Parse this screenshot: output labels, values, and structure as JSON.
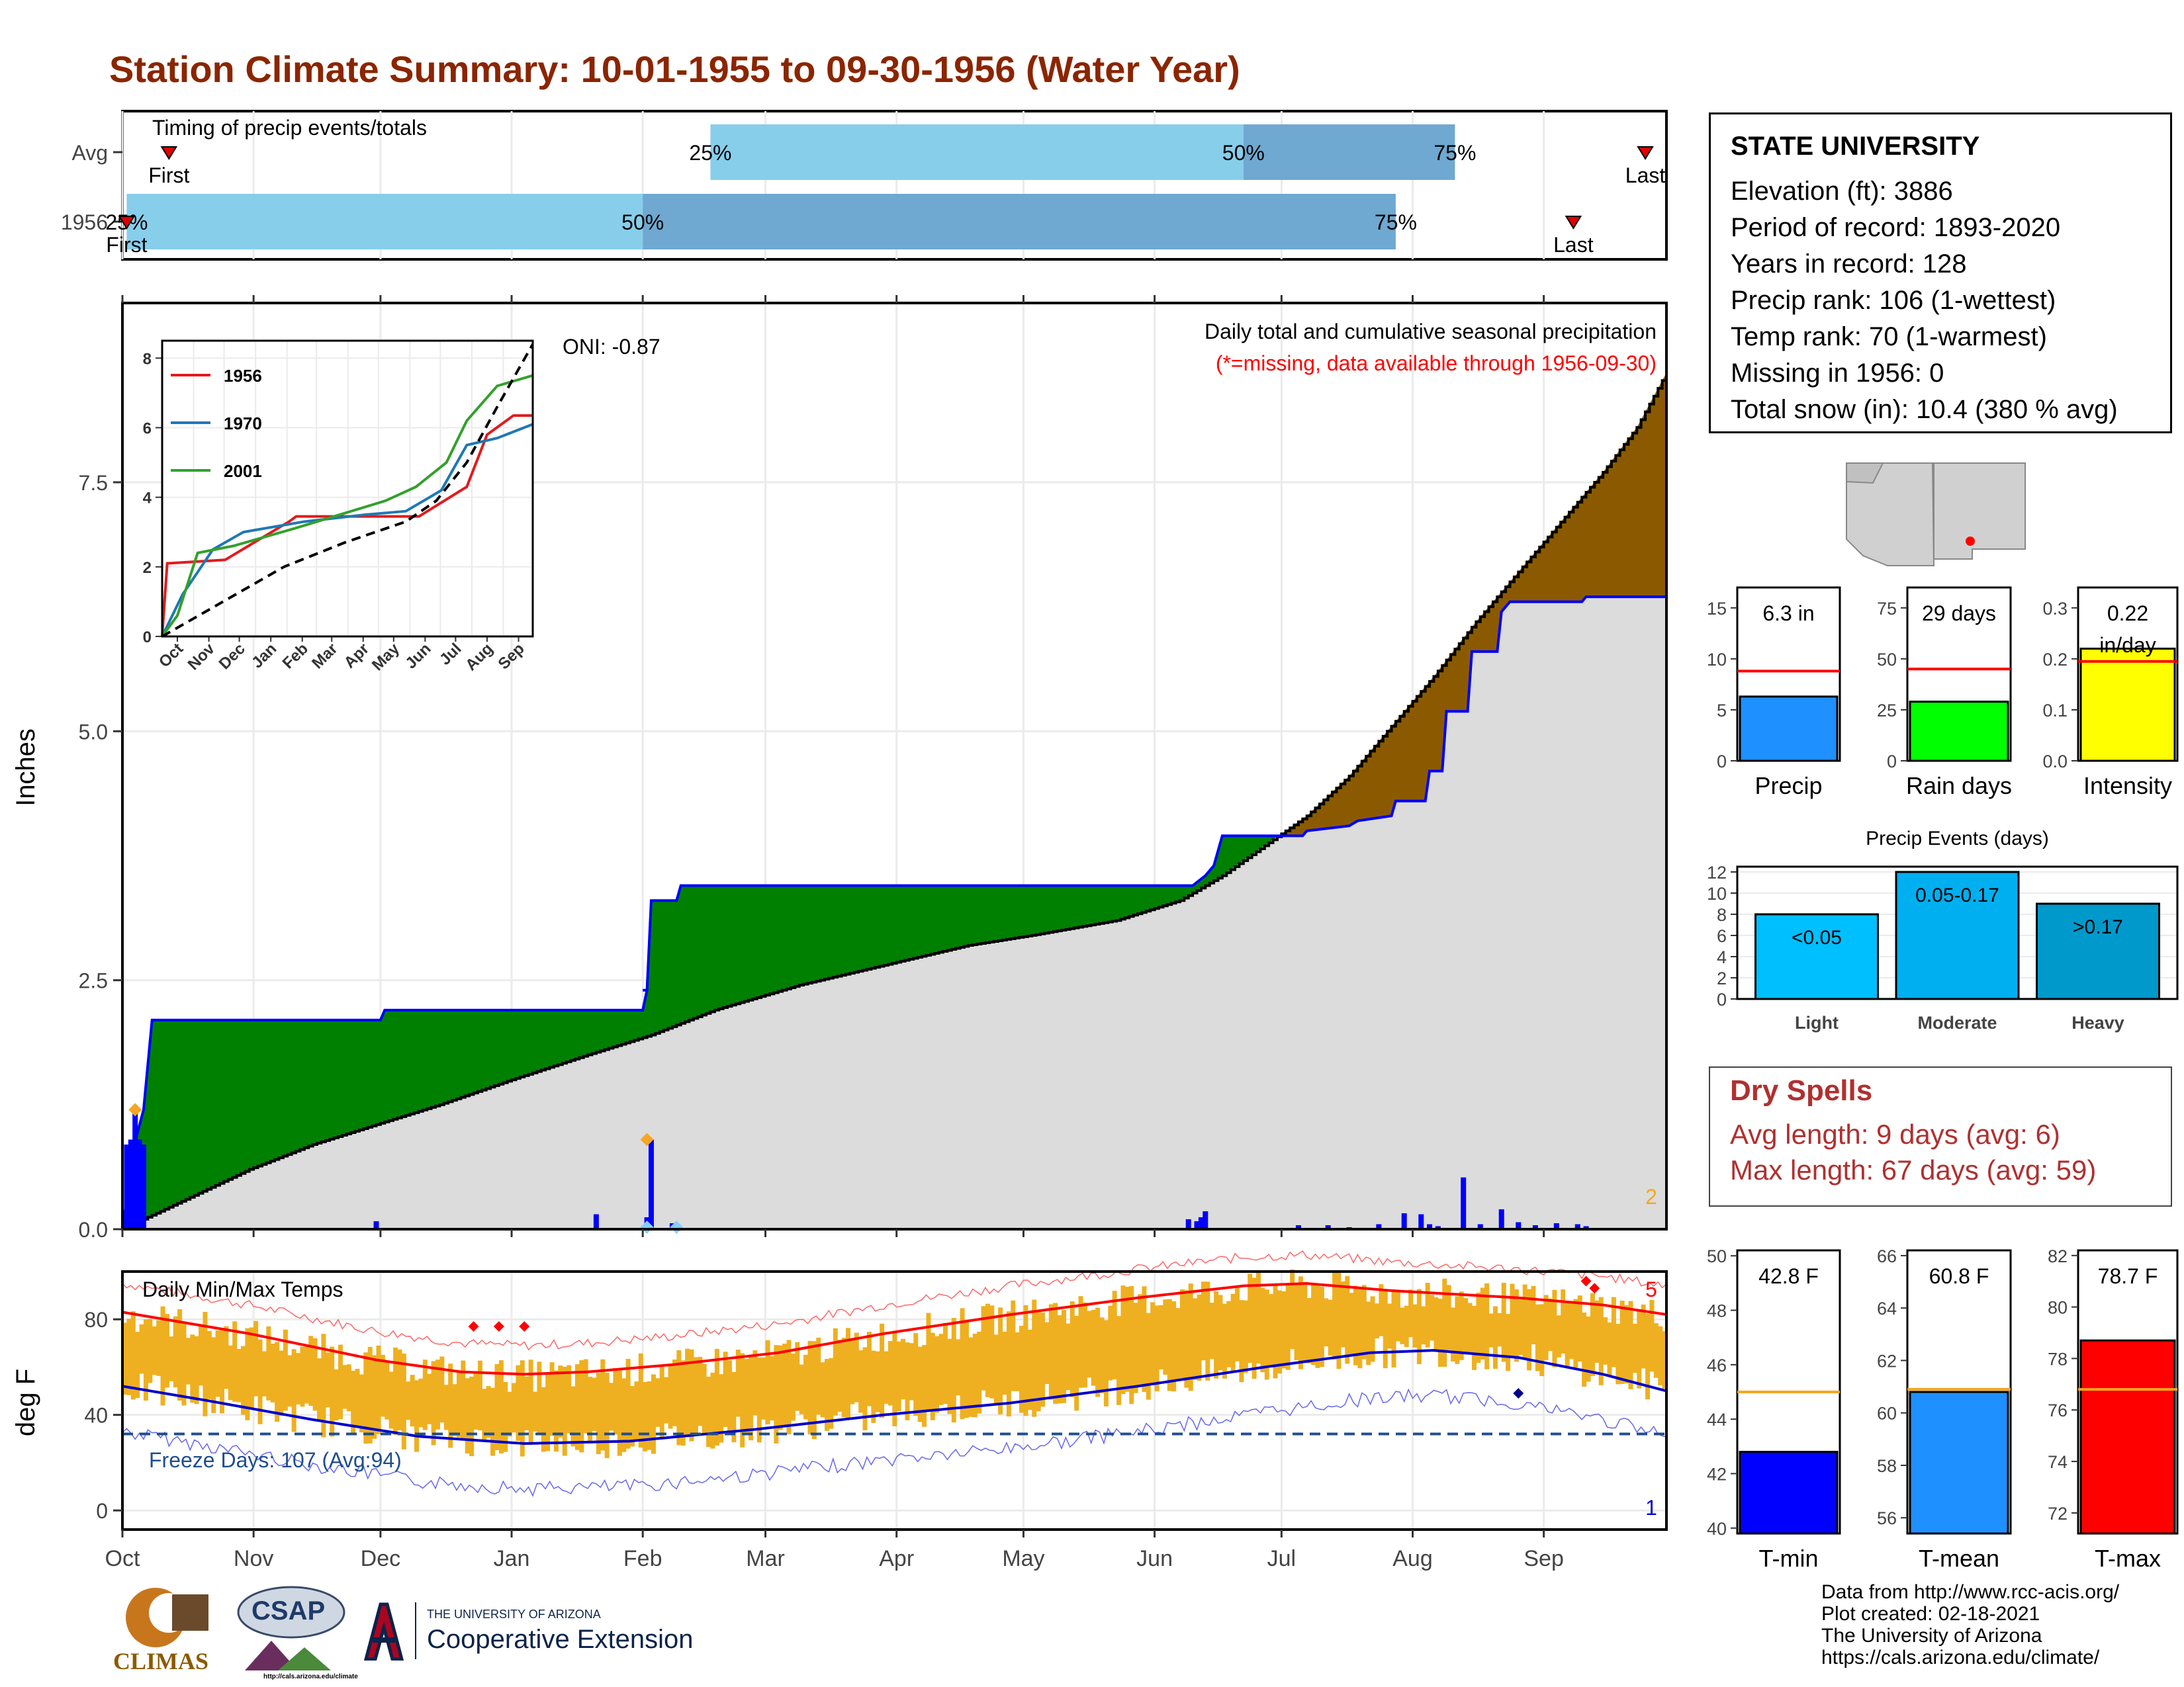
{
  "title": "Station Climate Summary: 10-01-1955 to 09-30-1956 (Water Year)",
  "station": {
    "name": "STATE UNIVERSITY",
    "lines": [
      "Elevation (ft): 3886",
      "Period of record: 1893-2020",
      "Years in record: 128",
      "Precip rank: 106 (1-wettest)",
      "Temp rank: 70 (1-warmest)",
      "Missing in 1956: 0",
      "Total snow (in): 10.4 (380 % avg)"
    ]
  },
  "dry_spells": {
    "title": "Dry Spells",
    "avg": "Avg length: 9 days (avg: 6)",
    "max": "Max length: 67 days (avg: 59)"
  },
  "credits": [
    "Data from http://www.rcc-acis.org/",
    "Plot created: 02-18-2021",
    "The University of Arizona",
    "https://cals.arizona.edu/climate/"
  ],
  "logos": {
    "climas": "CLIMAS",
    "csap": "CSAP",
    "csap_url": "http://cals.arizona.edu/climate",
    "ua_small": "THE UNIVERSITY OF ARIZONA",
    "ua_big": "Cooperative Extension"
  },
  "colors": {
    "title": "#8b2500",
    "green_fill": "#008000",
    "brown_fill": "#8b5a00",
    "gray_fill": "#dcdcdc",
    "precip_bar": "#0000ff",
    "light_blue": "#87ceeb",
    "mid_blue": "#6fa8d0",
    "temp_bar": "#eeb020",
    "tmax_line": "#ff0000",
    "tmin_line": "#0000cd",
    "freeze_line": "#1f4e8c"
  },
  "chart_data": [
    {
      "id": "timing",
      "type": "bar",
      "title": "Timing of precip events/totals",
      "categories": [
        "Avg",
        "1956"
      ],
      "x_axis": "date (Oct 1955 - Sep 1956)",
      "series": [
        {
          "name": "Avg",
          "first": "1955-10-12",
          "p25": "1956-02-17",
          "p50": "1956-06-22",
          "p75": "1956-08-11",
          "last": "1956-09-25",
          "labels": {
            "first": "First",
            "p25": "25%",
            "p50": "50%",
            "p75": "75%",
            "last": "Last"
          }
        },
        {
          "name": "1956",
          "first": "1955-10-02",
          "p25": "1955-10-02",
          "p50": "1956-02-01",
          "p75": "1956-07-28",
          "last": "1956-09-08",
          "labels": {
            "first": "First",
            "p25": "25%",
            "p50": "50%",
            "p75": "75%",
            "last": "Last"
          }
        }
      ]
    },
    {
      "id": "precip",
      "type": "area",
      "title": "Daily total and cumulative seasonal precipitation",
      "subtitle": "(*=missing, data available through 1956-09-30)",
      "oni_label": "ONI: -0.87",
      "ylabel": "Inches",
      "ylim": [
        0,
        9.3
      ],
      "yticks": [
        "0.0",
        "2.5",
        "5.0",
        "7.5"
      ],
      "xticks": [
        "Oct",
        "Nov",
        "Dec",
        "Jan",
        "Feb",
        "Mar",
        "Apr",
        "May",
        "Jun",
        "Jul",
        "Aug",
        "Sep"
      ],
      "count_label": "2",
      "cumulative_1956": [
        [
          0,
          0
        ],
        [
          3,
          0.88
        ],
        [
          5,
          1.2
        ],
        [
          7,
          2.1
        ],
        [
          61,
          2.1
        ],
        [
          62,
          2.2
        ],
        [
          123,
          2.2
        ],
        [
          124,
          2.4
        ],
        [
          124,
          2.4
        ],
        [
          123,
          2.4
        ],
        [
          124,
          2.4
        ],
        [
          125,
          3.3
        ],
        [
          131,
          3.3
        ],
        [
          132,
          3.45
        ],
        [
          253,
          3.45
        ],
        [
          256,
          3.55
        ],
        [
          258,
          3.65
        ],
        [
          260,
          3.95
        ],
        [
          279,
          3.95
        ],
        [
          280,
          4.0
        ],
        [
          290,
          4.05
        ],
        [
          292,
          4.1
        ],
        [
          300,
          4.15
        ],
        [
          301,
          4.3
        ],
        [
          308,
          4.3
        ],
        [
          309,
          4.6
        ],
        [
          312,
          4.6
        ],
        [
          313,
          5.2
        ],
        [
          318,
          5.2
        ],
        [
          319,
          5.8
        ],
        [
          325,
          5.8
        ],
        [
          326,
          6.2
        ],
        [
          328,
          6.3
        ],
        [
          345,
          6.3
        ],
        [
          346,
          6.35
        ],
        [
          365,
          6.35
        ]
      ],
      "cumulative_avg": [
        [
          0,
          0
        ],
        [
          15,
          0.3
        ],
        [
          30,
          0.6
        ],
        [
          45,
          0.85
        ],
        [
          60,
          1.05
        ],
        [
          75,
          1.25
        ],
        [
          92,
          1.5
        ],
        [
          110,
          1.75
        ],
        [
          125,
          1.95
        ],
        [
          140,
          2.2
        ],
        [
          160,
          2.45
        ],
        [
          180,
          2.65
        ],
        [
          200,
          2.85
        ],
        [
          215,
          2.95
        ],
        [
          235,
          3.1
        ],
        [
          250,
          3.3
        ],
        [
          260,
          3.55
        ],
        [
          270,
          3.85
        ],
        [
          280,
          4.15
        ],
        [
          290,
          4.55
        ],
        [
          300,
          5.05
        ],
        [
          310,
          5.55
        ],
        [
          320,
          6.1
        ],
        [
          330,
          6.6
        ],
        [
          340,
          7.1
        ],
        [
          350,
          7.6
        ],
        [
          358,
          8.05
        ],
        [
          365,
          8.6
        ]
      ],
      "daily_bars": [
        [
          1,
          0.85
        ],
        [
          2,
          0.9
        ],
        [
          3,
          1.2
        ],
        [
          4,
          0.9
        ],
        [
          5,
          0.85
        ],
        [
          60,
          0.08
        ],
        [
          112,
          0.15
        ],
        [
          124,
          0.12
        ],
        [
          125,
          0.9
        ],
        [
          130,
          0.06
        ],
        [
          252,
          0.1
        ],
        [
          254,
          0.08
        ],
        [
          255,
          0.12
        ],
        [
          256,
          0.18
        ],
        [
          278,
          0.04
        ],
        [
          285,
          0.04
        ],
        [
          290,
          0.02
        ],
        [
          297,
          0.05
        ],
        [
          303,
          0.16
        ],
        [
          307,
          0.15
        ],
        [
          309,
          0.05
        ],
        [
          311,
          0.03
        ],
        [
          317,
          0.52
        ],
        [
          321,
          0.05
        ],
        [
          326,
          0.2
        ],
        [
          330,
          0.07
        ],
        [
          334,
          0.04
        ],
        [
          339,
          0.06
        ],
        [
          344,
          0.05
        ],
        [
          346,
          0.03
        ]
      ],
      "daily_markers": [
        [
          3,
          1.2,
          "orange"
        ],
        [
          124,
          0.9,
          "orange"
        ],
        [
          124,
          0.02,
          "lightblue"
        ],
        [
          131,
          0.02,
          "lightblue"
        ]
      ],
      "inset": {
        "type": "line",
        "ylim": [
          0,
          8.5
        ],
        "yticks": [
          "0",
          "2",
          "4",
          "6",
          "8"
        ],
        "xticks": [
          "Oct",
          "Nov",
          "Dec",
          "Jan",
          "Feb",
          "Mar",
          "Apr",
          "May",
          "Jun",
          "Jul",
          "Aug",
          "Sep"
        ],
        "series": [
          {
            "name": "1956",
            "color": "#e31a1c",
            "values": [
              [
                0,
                0
              ],
              [
                5,
                2.1
              ],
              [
                62,
                2.2
              ],
              [
                125,
                3.3
              ],
              [
                132,
                3.45
              ],
              [
                253,
                3.45
              ],
              [
                300,
                4.3
              ],
              [
                320,
                5.8
              ],
              [
                346,
                6.35
              ],
              [
                365,
                6.35
              ]
            ]
          },
          {
            "name": "1970",
            "color": "#1f78b4",
            "values": [
              [
                0,
                0
              ],
              [
                20,
                1.2
              ],
              [
                50,
                2.5
              ],
              [
                80,
                3.0
              ],
              [
                140,
                3.3
              ],
              [
                200,
                3.5
              ],
              [
                240,
                3.6
              ],
              [
                275,
                4.2
              ],
              [
                300,
                5.5
              ],
              [
                330,
                5.7
              ],
              [
                365,
                6.1
              ]
            ]
          },
          {
            "name": "2001",
            "color": "#33a02c",
            "values": [
              [
                0,
                0
              ],
              [
                15,
                0.6
              ],
              [
                35,
                2.4
              ],
              [
                70,
                2.6
              ],
              [
                130,
                3.1
              ],
              [
                220,
                3.9
              ],
              [
                250,
                4.3
              ],
              [
                280,
                5.0
              ],
              [
                300,
                6.2
              ],
              [
                330,
                7.2
              ],
              [
                365,
                7.5
              ]
            ]
          },
          {
            "name": "Avg",
            "color": "#000000",
            "dashed": true,
            "values": [
              [
                0,
                0
              ],
              [
                60,
                1.0
              ],
              [
                120,
                2.0
              ],
              [
                180,
                2.7
              ],
              [
                240,
                3.3
              ],
              [
                270,
                3.9
              ],
              [
                300,
                5.0
              ],
              [
                330,
                6.6
              ],
              [
                365,
                8.4
              ]
            ]
          }
        ]
      }
    },
    {
      "id": "temps",
      "type": "bar",
      "title": "Daily Min/Max Temps",
      "ylabel": "deg F",
      "ylim": [
        -8,
        100
      ],
      "yticks": [
        "0",
        "40",
        "80"
      ],
      "xticks": [
        "Oct",
        "Nov",
        "Dec",
        "Jan",
        "Feb",
        "Mar",
        "Apr",
        "May",
        "Jun",
        "Jul",
        "Aug",
        "Sep"
      ],
      "freeze_label": "Freeze Days: 107 (Avg:94)",
      "freeze_line_f": 32,
      "count_hi": "5",
      "count_lo": "1",
      "avg_tmax_pts": [
        [
          0,
          83
        ],
        [
          30,
          74
        ],
        [
          60,
          63
        ],
        [
          80,
          58
        ],
        [
          95,
          57
        ],
        [
          110,
          58
        ],
        [
          130,
          61
        ],
        [
          155,
          66
        ],
        [
          180,
          74
        ],
        [
          210,
          82
        ],
        [
          240,
          89
        ],
        [
          265,
          94
        ],
        [
          280,
          95
        ],
        [
          300,
          92
        ],
        [
          330,
          89
        ],
        [
          350,
          86
        ],
        [
          365,
          82
        ]
      ],
      "avg_tmin_pts": [
        [
          0,
          52
        ],
        [
          20,
          46
        ],
        [
          45,
          38
        ],
        [
          70,
          31
        ],
        [
          95,
          28
        ],
        [
          120,
          29
        ],
        [
          150,
          34
        ],
        [
          180,
          40
        ],
        [
          210,
          45
        ],
        [
          240,
          52
        ],
        [
          270,
          60
        ],
        [
          295,
          66
        ],
        [
          310,
          67
        ],
        [
          330,
          64
        ],
        [
          350,
          57
        ],
        [
          365,
          50
        ]
      ]
    },
    {
      "id": "precip-summary",
      "type": "bar",
      "panels": [
        {
          "label": "Precip",
          "value": 6.3,
          "value_text": "6.3 in",
          "avg": 8.8,
          "ylim": [
            0,
            17
          ],
          "yticks": [
            0,
            5,
            10,
            15
          ],
          "color": "#1e90ff"
        },
        {
          "label": "Rain days",
          "value": 29,
          "value_text": "29 days",
          "avg": 45,
          "ylim": [
            0,
            85
          ],
          "yticks": [
            0,
            25,
            50,
            75
          ],
          "color": "#00ff00"
        },
        {
          "label": "Intensity",
          "value": 0.22,
          "value_text": "0.22 in/day",
          "avg": 0.195,
          "ylim": [
            0,
            0.34
          ],
          "yticks": [
            "0.0",
            "0.1",
            "0.2",
            "0.3"
          ],
          "color": "#ffff00"
        }
      ]
    },
    {
      "id": "precip-events",
      "type": "bar",
      "title": "Precip Events (days)",
      "categories": [
        "Light",
        "Moderate",
        "Heavy"
      ],
      "values": [
        8,
        12,
        9
      ],
      "value_labels": [
        "<0.05",
        "0.05-0.17",
        ">0.17"
      ],
      "colors": [
        "#00bfff",
        "#00afef",
        "#0099cc"
      ],
      "ylim": [
        0,
        12.5
      ],
      "yticks": [
        0,
        2,
        4,
        6,
        8,
        10,
        12
      ]
    },
    {
      "id": "temp-summary",
      "type": "bar",
      "panels": [
        {
          "label": "T-min",
          "value": 42.8,
          "value_text": "42.8 F",
          "avg": 45.0,
          "ylim": [
            39.8,
            50.2
          ],
          "yticks": [
            40,
            42,
            44,
            46,
            48,
            50
          ],
          "color": "#0000ff"
        },
        {
          "label": "T-mean",
          "value": 60.8,
          "value_text": "60.8 F",
          "avg": 60.9,
          "ylim": [
            55.4,
            66.2
          ],
          "yticks": [
            56,
            58,
            60,
            62,
            64,
            66
          ],
          "color": "#1e90ff"
        },
        {
          "label": "T-max",
          "value": 78.7,
          "value_text": "78.7 F",
          "avg": 76.8,
          "ylim": [
            71.2,
            82.2
          ],
          "yticks": [
            72,
            74,
            76,
            78,
            80,
            82
          ],
          "color": "#ff0000"
        }
      ]
    }
  ]
}
